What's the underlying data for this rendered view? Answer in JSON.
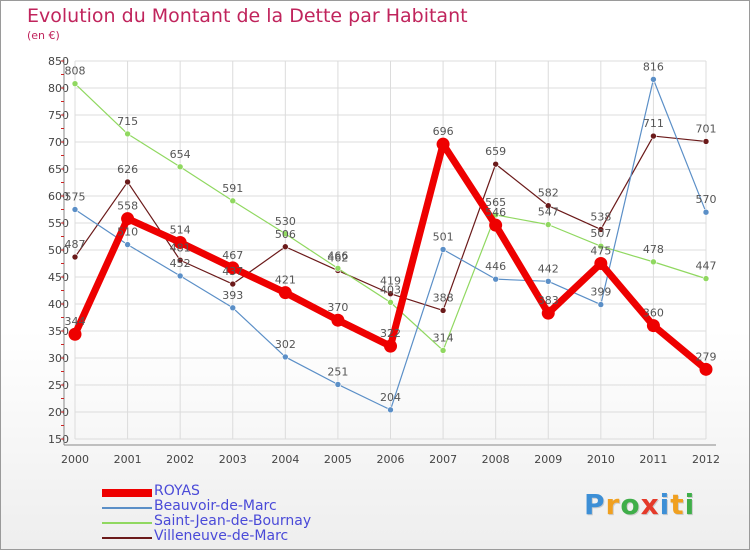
{
  "header": {
    "title": "Evolution du Montant de la Dette par Habitant",
    "subtitle": "(en €)"
  },
  "logo": {
    "letters": [
      "P",
      "r",
      "o",
      "x",
      "i",
      "t",
      "i"
    ],
    "colors": [
      "#3d8fd6",
      "#f0a020",
      "#3fae49",
      "#e53a2a",
      "#3d8fd6",
      "#f0a020",
      "#3fae49"
    ]
  },
  "chart_data": {
    "type": "line",
    "x": [
      "2000",
      "2001",
      "2002",
      "2003",
      "2004",
      "2005",
      "2006",
      "2007",
      "2008",
      "2009",
      "2010",
      "2011",
      "2012"
    ],
    "ylim": [
      150,
      850
    ],
    "yticks": [
      150,
      200,
      250,
      300,
      350,
      400,
      450,
      500,
      550,
      600,
      650,
      700,
      750,
      800,
      850
    ],
    "grid": true,
    "legend_position": "bottom-left",
    "series": [
      {
        "name": "Villeneuve-de-Marc",
        "color": "#6b1a1a",
        "values": [
          487,
          626,
          481,
          437,
          506,
          462,
          419,
          388,
          659,
          582,
          538,
          711,
          701
        ]
      },
      {
        "name": "Saint-Jean-de-Bournay",
        "color": "#90d860",
        "values": [
          808,
          715,
          654,
          591,
          530,
          466,
          403,
          314,
          565,
          547,
          507,
          478,
          447
        ]
      },
      {
        "name": "Beauvoir-de-Marc",
        "color": "#5b8fc7",
        "values": [
          575,
          510,
          452,
          393,
          302,
          251,
          204,
          501,
          446,
          442,
          399,
          816,
          570
        ]
      },
      {
        "name": "ROYAS",
        "color": "#ee0000",
        "values": [
          344,
          558,
          514,
          467,
          421,
          370,
          322,
          696,
          546,
          383,
          475,
          360,
          279
        ]
      }
    ]
  }
}
